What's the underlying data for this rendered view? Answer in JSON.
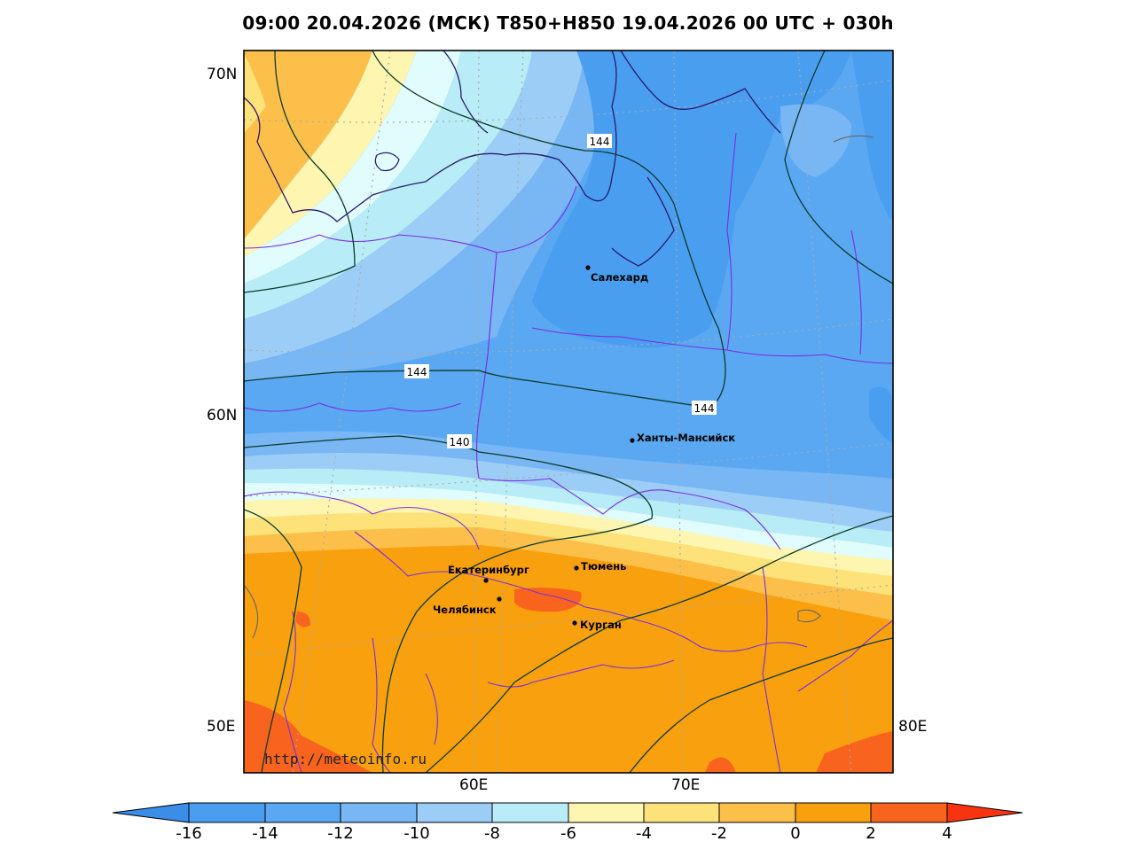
{
  "title": "09:00 20.04.2026 (МСК) T850+H850 19.04.2026 00 UTC + 030h",
  "axes": {
    "lat_labels": [
      "70N",
      "60N",
      "50E"
    ],
    "lon_labels": [
      "60E",
      "70E",
      "80E"
    ]
  },
  "cities": [
    {
      "name": "Салехард"
    },
    {
      "name": "Ханты-Мансийск"
    },
    {
      "name": "Екатеринбург"
    },
    {
      "name": "Тюмень"
    },
    {
      "name": "Челябинск"
    },
    {
      "name": "Курган"
    }
  ],
  "contour_labels": [
    "144",
    "144",
    "144",
    "140"
  ],
  "watermark": "http://meteoinfo.ru",
  "colorbar": {
    "ticks": [
      "-16",
      "-14",
      "-12",
      "-10",
      "-8",
      "-6",
      "-4",
      "-2",
      "0",
      "2",
      "4"
    ],
    "colors": [
      "#4a9ef0",
      "#5aa8f2",
      "#78b6f4",
      "#9ccdf6",
      "#b8ecf6",
      "#e0fcfc",
      "#fef5b0",
      "#fde27a",
      "#fcc04a",
      "#f9a00e",
      "#f8641e",
      "#f83410"
    ]
  }
}
